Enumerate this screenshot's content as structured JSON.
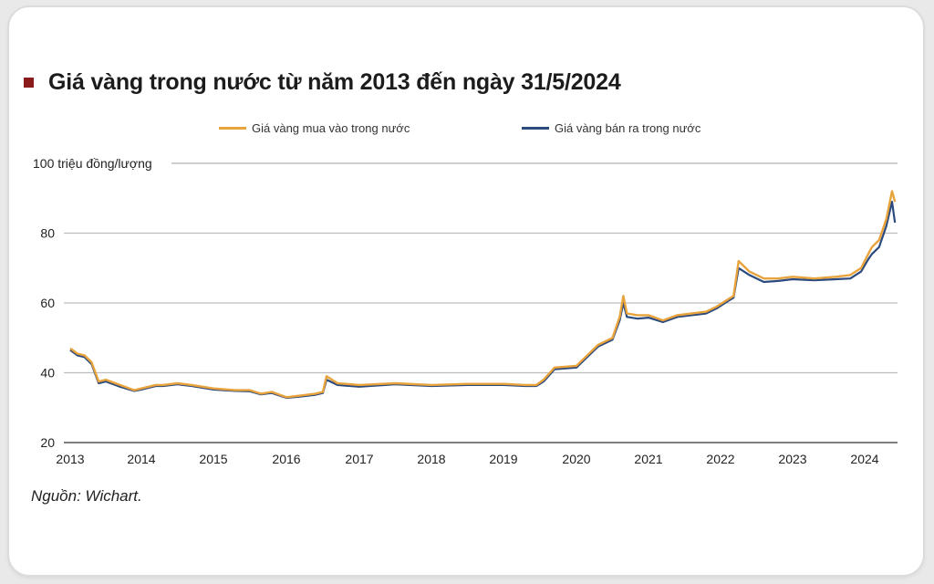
{
  "title": "Giá vàng trong nước từ năm 2013 đến ngày 31/5/2024",
  "source": "Nguồn: Wichart.",
  "colors": {
    "buy": "#e8a33c",
    "sell": "#2b4a7e",
    "title_marker": "#8b1a1a",
    "grid": "#bdbdbd"
  },
  "chart_data": {
    "type": "line",
    "title": "Giá vàng trong nước từ năm 2013 đến ngày 31/5/2024",
    "ylabel": "100 triệu đồng/lượng",
    "ylim": [
      20,
      100
    ],
    "yticks": [
      "20",
      "40",
      "60",
      "80"
    ],
    "xlim": [
      2013.0,
      2024.42
    ],
    "xticks": [
      "2013",
      "2014",
      "2015",
      "2016",
      "2017",
      "2018",
      "2019",
      "2020",
      "2021",
      "2022",
      "2023",
      "2024"
    ],
    "grid": true,
    "legend_position": "top",
    "series": [
      {
        "name": "Giá vàng mua vào trong nước",
        "color": "#e8a33c",
        "x": [
          2013.0,
          2013.1,
          2013.2,
          2013.3,
          2013.4,
          2013.5,
          2013.7,
          2013.9,
          2014.0,
          2014.2,
          2014.3,
          2014.5,
          2014.7,
          2015.0,
          2015.3,
          2015.5,
          2015.65,
          2015.8,
          2016.0,
          2016.2,
          2016.4,
          2016.5,
          2016.55,
          2016.7,
          2017.0,
          2017.5,
          2018.0,
          2018.5,
          2019.0,
          2019.3,
          2019.45,
          2019.55,
          2019.7,
          2020.0,
          2020.1,
          2020.3,
          2020.5,
          2020.6,
          2020.65,
          2020.7,
          2020.85,
          2021.0,
          2021.2,
          2021.4,
          2021.6,
          2021.8,
          2021.95,
          2022.1,
          2022.18,
          2022.25,
          2022.4,
          2022.6,
          2022.8,
          2023.0,
          2023.3,
          2023.6,
          2023.8,
          2023.95,
          2024.05,
          2024.1,
          2024.2,
          2024.3,
          2024.38,
          2024.42
        ],
        "y": [
          47,
          45.5,
          45,
          43,
          37.5,
          38,
          36.5,
          35,
          35.5,
          36.5,
          36.5,
          37,
          36.5,
          35.5,
          35,
          35,
          34,
          34.5,
          33,
          33.5,
          34,
          34.5,
          39,
          37,
          36.5,
          37,
          36.5,
          36.8,
          36.8,
          36.5,
          36.5,
          38,
          41.5,
          42,
          44,
          48,
          50,
          56,
          62,
          57,
          56.5,
          56.5,
          55,
          56.5,
          57,
          57.5,
          59,
          61,
          62,
          72,
          69,
          67,
          67,
          67.5,
          67,
          67.5,
          68,
          70,
          74,
          76,
          78,
          84,
          92,
          89
        ]
      },
      {
        "name": "Giá vàng bán ra trong nước",
        "color": "#2b4a7e",
        "x": [
          2013.0,
          2013.1,
          2013.2,
          2013.3,
          2013.4,
          2013.5,
          2013.7,
          2013.9,
          2014.0,
          2014.2,
          2014.3,
          2014.5,
          2014.7,
          2015.0,
          2015.3,
          2015.5,
          2015.65,
          2015.8,
          2016.0,
          2016.2,
          2016.4,
          2016.5,
          2016.55,
          2016.7,
          2017.0,
          2017.5,
          2018.0,
          2018.5,
          2019.0,
          2019.3,
          2019.45,
          2019.55,
          2019.7,
          2020.0,
          2020.1,
          2020.3,
          2020.5,
          2020.6,
          2020.65,
          2020.7,
          2020.85,
          2021.0,
          2021.2,
          2021.4,
          2021.6,
          2021.8,
          2021.95,
          2022.1,
          2022.18,
          2022.25,
          2022.4,
          2022.6,
          2022.8,
          2023.0,
          2023.3,
          2023.6,
          2023.8,
          2023.95,
          2024.05,
          2024.1,
          2024.2,
          2024.3,
          2024.38,
          2024.42
        ],
        "y": [
          46.5,
          45,
          44.5,
          42.5,
          37,
          37.5,
          36,
          34.8,
          35.2,
          36.2,
          36.2,
          36.7,
          36.2,
          35.2,
          34.8,
          34.7,
          33.8,
          34.2,
          32.8,
          33.2,
          33.7,
          34.2,
          38,
          36.5,
          36,
          36.7,
          36.2,
          36.5,
          36.5,
          36.2,
          36.2,
          37.5,
          41,
          41.5,
          43.5,
          47.5,
          49.5,
          55,
          60,
          56,
          55.5,
          55.8,
          54.5,
          56,
          56.5,
          57,
          58.5,
          60.5,
          61.5,
          70,
          68,
          66,
          66.3,
          66.8,
          66.5,
          66.8,
          67,
          69,
          72.5,
          74,
          76,
          82,
          89,
          83
        ]
      }
    ]
  }
}
